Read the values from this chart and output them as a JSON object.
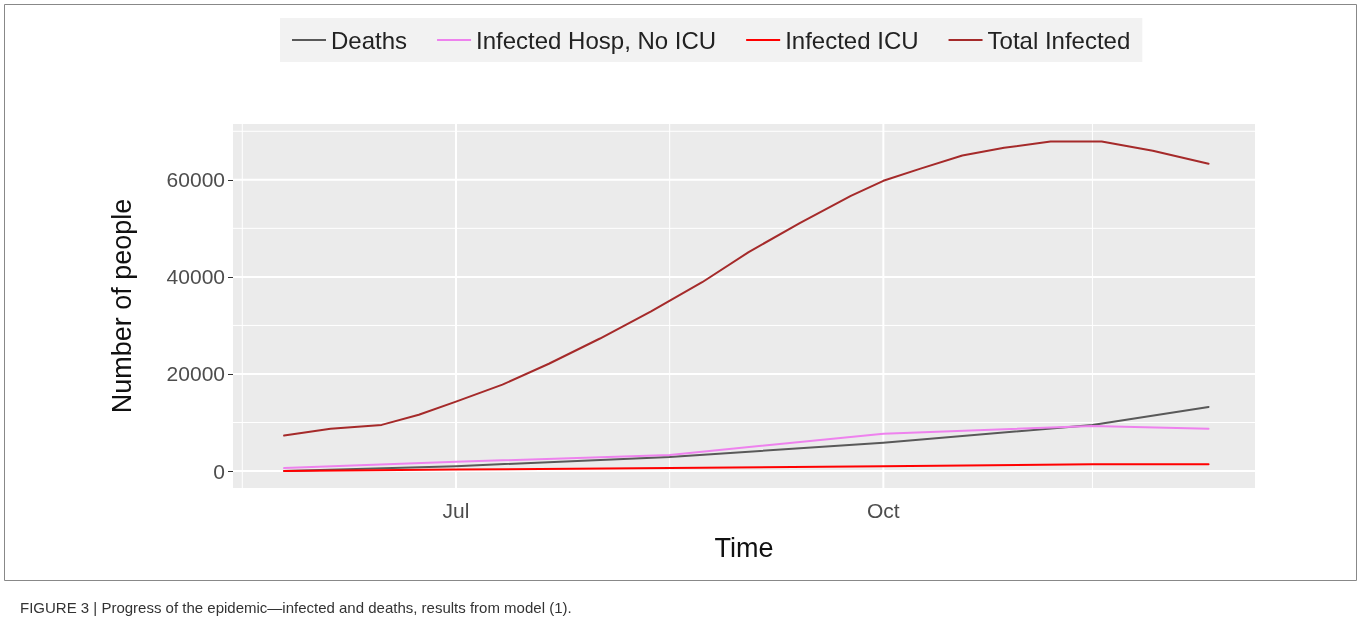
{
  "chart_data": {
    "type": "line",
    "xlabel": "Time",
    "ylabel": "Number of people",
    "annotations": [
      "FIGURE 3 | Progress of the epidemic—infected and deaths, results from model (1)."
    ],
    "xlim": [
      "--05-14",
      "--12-20"
    ],
    "xticks": [
      {
        "value": "--05-16",
        "label": null
      },
      {
        "value": "--07-01",
        "label": "Jul"
      },
      {
        "value": "--08-16",
        "label": null
      },
      {
        "value": "--10-01",
        "label": "Oct"
      },
      {
        "value": "--11-15",
        "label": null
      }
    ],
    "ylim": [
      -3500,
      71500
    ],
    "yticks": [
      0,
      {
        "value": 10000,
        "label": null
      },
      20000,
      {
        "value": 30000,
        "label": null
      },
      40000,
      {
        "value": 50000,
        "label": null
      },
      60000,
      {
        "value": 70000,
        "label": null
      }
    ],
    "grid": true,
    "legend": "top",
    "marker": "none",
    "line_style": "solid",
    "series": [
      {
        "name": "Deaths",
        "color": "#595959",
        "x": [
          "--05-25",
          "--07-01",
          "--08-16",
          "--10-01",
          "--11-15",
          "--12-10"
        ],
        "values": [
          0,
          1000,
          2900,
          5800,
          9500,
          13200
        ]
      },
      {
        "name": "Infected Hosp, No ICU",
        "color": "#ee82ee",
        "x": [
          "--05-25",
          "--07-01",
          "--08-16",
          "--10-01",
          "--11-15",
          "--12-10"
        ],
        "values": [
          600,
          1900,
          3300,
          7700,
          9300,
          8700
        ]
      },
      {
        "name": "Infected ICU",
        "color": "#ff0000",
        "x": [
          "--05-25",
          "--07-01",
          "--08-16",
          "--10-01",
          "--11-15",
          "--12-10"
        ],
        "values": [
          0,
          300,
          600,
          1000,
          1400,
          1400
        ]
      },
      {
        "name": "Total Infected",
        "color": "#a52a2a",
        "x": [
          "--05-25",
          "--06-04",
          "--06-15",
          "--06-23",
          "--07-01",
          "--07-11",
          "--07-21",
          "--08-01",
          "--08-12",
          "--08-23",
          "--09-02",
          "--09-13",
          "--09-24",
          "--10-01",
          "--10-09",
          "--10-18",
          "--10-27",
          "--11-06",
          "--11-17",
          "--11-28",
          "--12-10"
        ],
        "values": [
          7300,
          8700,
          9500,
          11600,
          14300,
          17800,
          22100,
          27300,
          32900,
          38900,
          45100,
          51100,
          56700,
          59800,
          62300,
          65000,
          66600,
          67900,
          67900,
          66000,
          63300
        ]
      }
    ]
  }
}
